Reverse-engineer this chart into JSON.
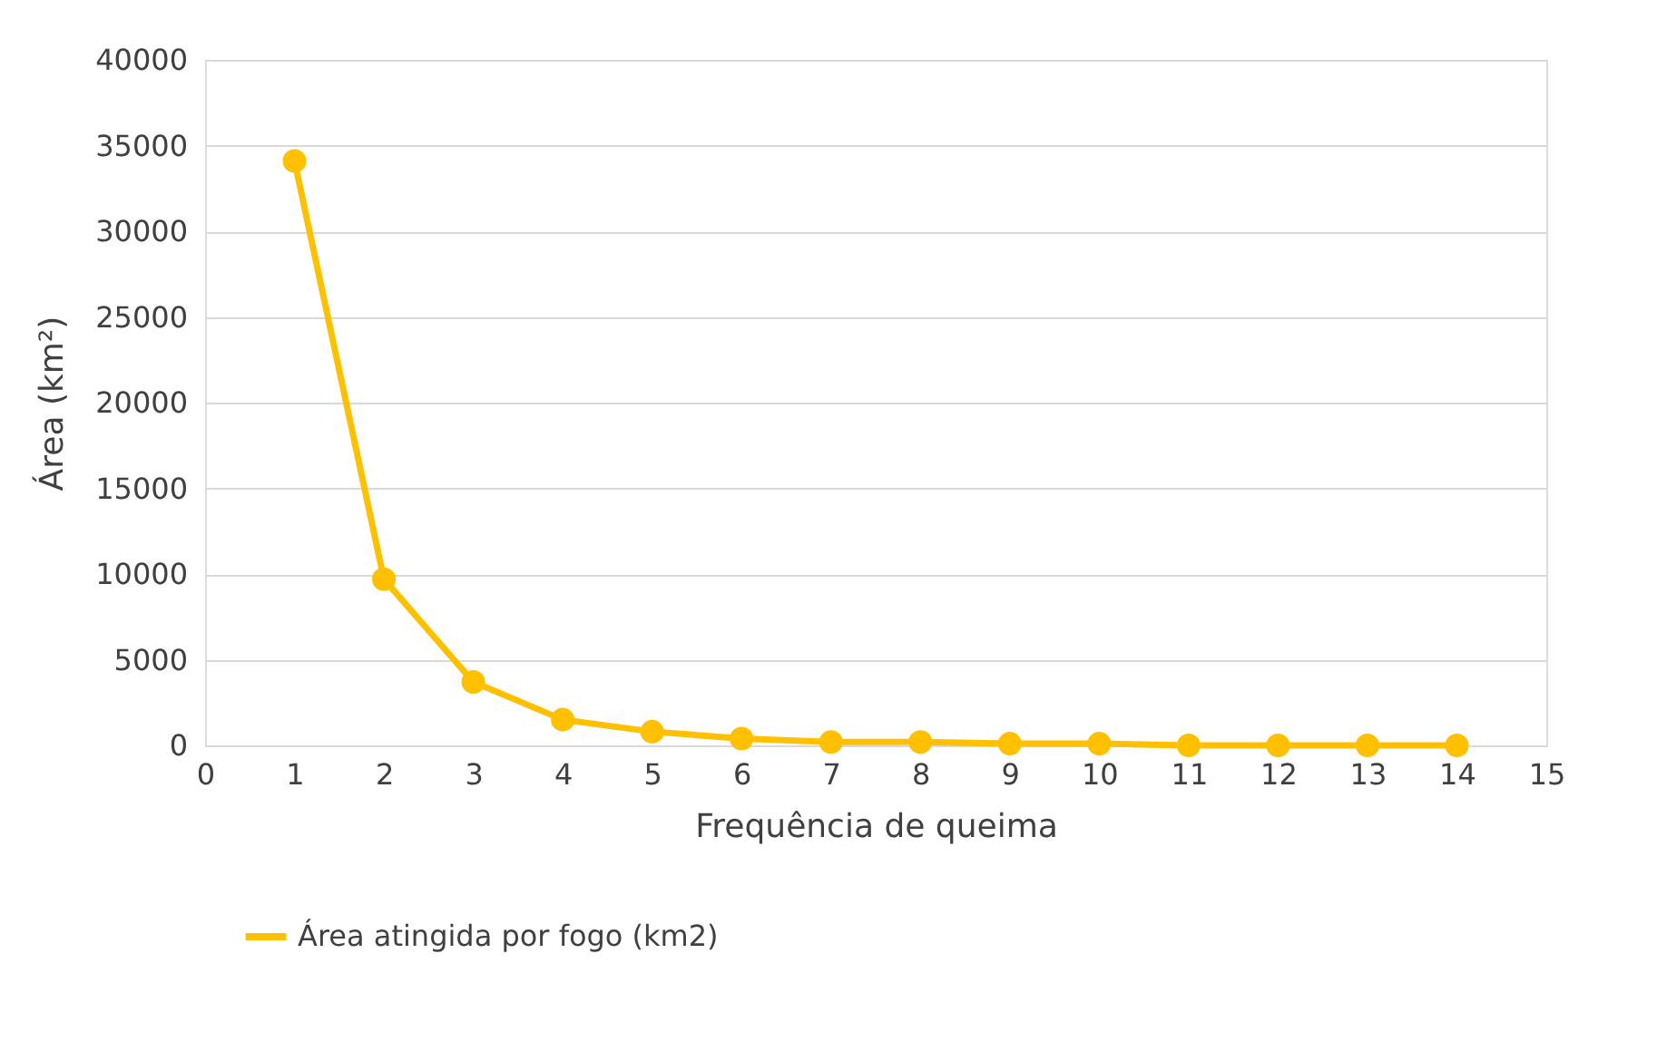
{
  "chart_data": {
    "type": "line",
    "xlabel": "Frequência de queima",
    "ylabel": "Área (km²)",
    "x": [
      1,
      2,
      3,
      4,
      5,
      6,
      7,
      8,
      9,
      10,
      11,
      12,
      13,
      14
    ],
    "series": [
      {
        "name": "Área atingida por fogo (km2)",
        "color": "#ffc000",
        "values": [
          34100,
          9700,
          3700,
          1500,
          800,
          400,
          200,
          200,
          100,
          100,
          0,
          0,
          0,
          0
        ]
      }
    ],
    "xlim": [
      0,
      15
    ],
    "xticks": [
      0,
      1,
      2,
      3,
      4,
      5,
      6,
      7,
      8,
      9,
      10,
      11,
      12,
      13,
      14,
      15
    ],
    "ylim": [
      0,
      40000
    ],
    "yticks": [
      0,
      5000,
      10000,
      15000,
      20000,
      25000,
      30000,
      35000,
      40000
    ],
    "grid": "y",
    "legend": "bottom",
    "marker": "circle",
    "line_style": "solid"
  }
}
